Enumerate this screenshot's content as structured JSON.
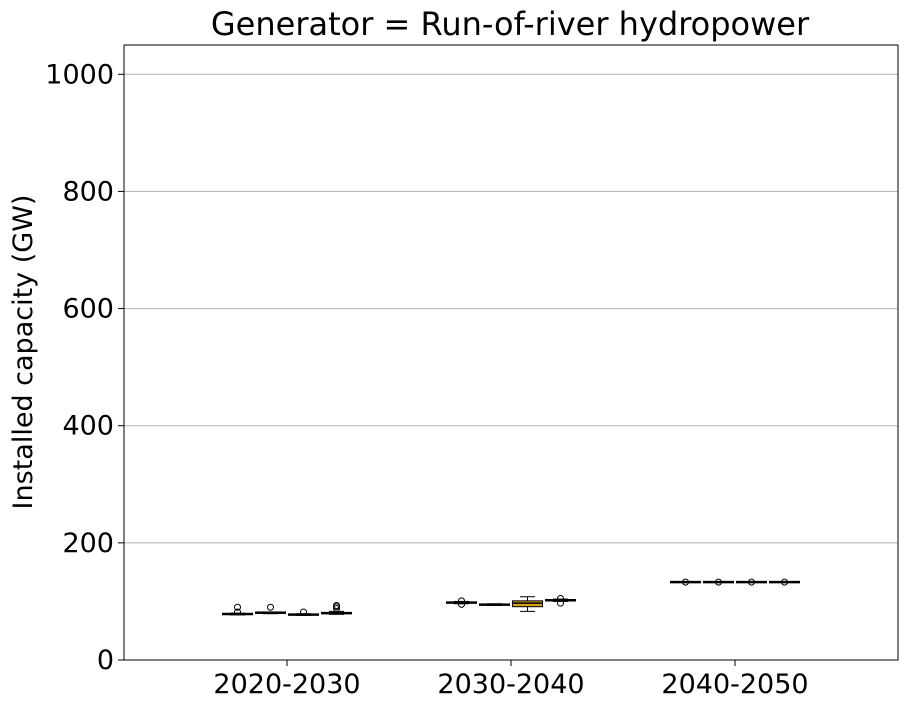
{
  "chart_data": {
    "type": "boxplot",
    "title": "Generator = Run-of-river hydropower",
    "xlabel": "",
    "ylabel": "Installed capacity (GW)",
    "ylim": [
      0,
      1050
    ],
    "yticks": [
      0,
      200,
      400,
      600,
      800,
      1000
    ],
    "grid": "y",
    "categories": [
      "2020-2030",
      "2030-2040",
      "2040-2050"
    ],
    "series": [
      {
        "color": "#4c72b0",
        "boxes": [
          {
            "category": "2020-2030",
            "whislo": 77,
            "q1": 78,
            "med": 78.5,
            "q3": 79,
            "whishi": 80,
            "fliers": [
              82,
              90
            ]
          },
          {
            "category": "2030-2040",
            "whislo": 96,
            "q1": 97,
            "med": 98,
            "q3": 99,
            "whishi": 100,
            "fliers": [
              95,
              101
            ]
          },
          {
            "category": "2040-2050",
            "whislo": 133,
            "q1": 133,
            "med": 133,
            "q3": 133,
            "whishi": 133,
            "fliers": [
              133
            ]
          }
        ]
      },
      {
        "color": "#4c72b0",
        "boxes": [
          {
            "category": "2020-2030",
            "whislo": 79,
            "q1": 80,
            "med": 81,
            "q3": 81.5,
            "whishi": 82,
            "fliers": [
              90
            ]
          },
          {
            "category": "2030-2040",
            "whislo": 93,
            "q1": 94,
            "med": 94.5,
            "q3": 95,
            "whishi": 96,
            "fliers": []
          },
          {
            "category": "2040-2050",
            "whislo": 133,
            "q1": 133,
            "med": 133,
            "q3": 133,
            "whishi": 133,
            "fliers": [
              133
            ]
          }
        ]
      },
      {
        "color": "#d4a017",
        "boxes": [
          {
            "category": "2020-2030",
            "whislo": 76,
            "q1": 77,
            "med": 77.5,
            "q3": 78,
            "whishi": 79,
            "fliers": [
              82
            ]
          },
          {
            "category": "2030-2040",
            "whislo": 83,
            "q1": 91,
            "med": 97,
            "q3": 101,
            "whishi": 108,
            "fliers": []
          },
          {
            "category": "2040-2050",
            "whislo": 133,
            "q1": 133,
            "med": 133,
            "q3": 133,
            "whishi": 133,
            "fliers": [
              133
            ]
          }
        ]
      },
      {
        "color": "#4c72b0",
        "boxes": [
          {
            "category": "2020-2030",
            "whislo": 78,
            "q1": 79,
            "med": 80,
            "q3": 81,
            "whishi": 83,
            "fliers": [
              88,
              91,
              93
            ]
          },
          {
            "category": "2030-2040",
            "whislo": 100,
            "q1": 101,
            "med": 102,
            "q3": 103,
            "whishi": 104,
            "fliers": [
              97,
              105
            ]
          },
          {
            "category": "2040-2050",
            "whislo": 133,
            "q1": 133,
            "med": 133,
            "q3": 133,
            "whishi": 133,
            "fliers": [
              133
            ]
          }
        ]
      }
    ]
  }
}
